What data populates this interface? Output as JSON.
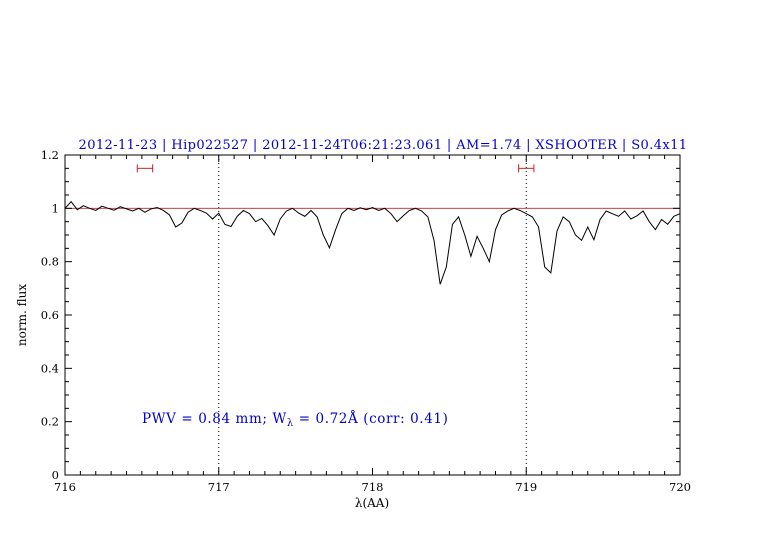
{
  "colors": {
    "accent_blue": "#0000cd",
    "continuum_red": "#cc2222",
    "marker_red": "#cc2222",
    "spectrum_black": "#000000"
  },
  "annotation": {
    "prefix": "PWV = 0.84 mm; W",
    "sub": "λ",
    "suffix": " = 0.72Å (corr: 0.41)"
  },
  "chart_data": {
    "type": "line",
    "title": "2012-11-23 | Hip022527 | 2012-11-24T06:21:23.061 | AM=1.74 | XSHOOTER | S0.4x11",
    "xlabel": "λ(AA)",
    "ylabel": "norm. flux",
    "xlim": [
      716,
      720
    ],
    "ylim": [
      0,
      1.2
    ],
    "x_ticks": [
      716,
      717,
      718,
      719,
      720
    ],
    "y_ticks": [
      0,
      0.2,
      0.4,
      0.6,
      0.8,
      1,
      1.2
    ],
    "x_minor_step": 0.1,
    "y_minor_step": 0.05,
    "grid": false,
    "legend": "none",
    "vlines": [
      717,
      719
    ],
    "continuum_y": 1.0,
    "markers": [
      {
        "x_center": 716.52,
        "half_width": 0.05,
        "y": 1.15
      },
      {
        "x_center": 719.0,
        "half_width": 0.05,
        "y": 1.15
      }
    ],
    "series": [
      {
        "name": "spectrum",
        "x": [
          716.0,
          716.04,
          716.08,
          716.12,
          716.16,
          716.2,
          716.24,
          716.28,
          716.32,
          716.36,
          716.4,
          716.44,
          716.48,
          716.52,
          716.56,
          716.6,
          716.64,
          716.68,
          716.72,
          716.76,
          716.8,
          716.84,
          716.88,
          716.92,
          716.96,
          717.0,
          717.04,
          717.08,
          717.12,
          717.16,
          717.2,
          717.24,
          717.28,
          717.32,
          717.36,
          717.4,
          717.44,
          717.48,
          717.52,
          717.56,
          717.6,
          717.64,
          717.68,
          717.72,
          717.76,
          717.8,
          717.84,
          717.88,
          717.92,
          717.96,
          718.0,
          718.04,
          718.08,
          718.12,
          718.16,
          718.2,
          718.24,
          718.28,
          718.32,
          718.36,
          718.4,
          718.44,
          718.48,
          718.52,
          718.56,
          718.6,
          718.64,
          718.68,
          718.72,
          718.76,
          718.8,
          718.84,
          718.88,
          718.92,
          718.96,
          719.0,
          719.04,
          719.08,
          719.12,
          719.16,
          719.2,
          719.24,
          719.28,
          719.32,
          719.36,
          719.4,
          719.44,
          719.48,
          719.52,
          719.56,
          719.6,
          719.64,
          719.68,
          719.72,
          719.76,
          719.8,
          719.84,
          719.88,
          719.92,
          719.96,
          720.0
        ],
        "y": [
          1.0,
          1.025,
          0.995,
          1.01,
          1.0,
          0.992,
          1.008,
          1.0,
          0.993,
          1.006,
          0.998,
          0.99,
          1.0,
          0.985,
          0.998,
          1.003,
          0.992,
          0.975,
          0.93,
          0.945,
          0.985,
          1.0,
          0.992,
          0.982,
          0.96,
          0.982,
          0.94,
          0.932,
          0.97,
          0.992,
          0.98,
          0.95,
          0.962,
          0.935,
          0.9,
          0.96,
          0.99,
          1.0,
          0.982,
          0.97,
          0.992,
          0.968,
          0.9,
          0.852,
          0.92,
          0.98,
          1.0,
          0.992,
          1.002,
          0.995,
          1.003,
          0.992,
          1.0,
          0.98,
          0.95,
          0.972,
          0.992,
          1.0,
          0.99,
          0.968,
          0.88,
          0.715,
          0.78,
          0.94,
          0.968,
          0.9,
          0.82,
          0.895,
          0.85,
          0.8,
          0.92,
          0.975,
          0.99,
          1.0,
          0.992,
          0.98,
          0.968,
          0.93,
          0.78,
          0.758,
          0.915,
          0.968,
          0.95,
          0.9,
          0.88,
          0.93,
          0.882,
          0.958,
          0.99,
          0.98,
          0.97,
          0.99,
          0.96,
          0.972,
          0.99,
          0.95,
          0.92,
          0.958,
          0.94,
          0.97,
          0.98
        ]
      }
    ]
  }
}
